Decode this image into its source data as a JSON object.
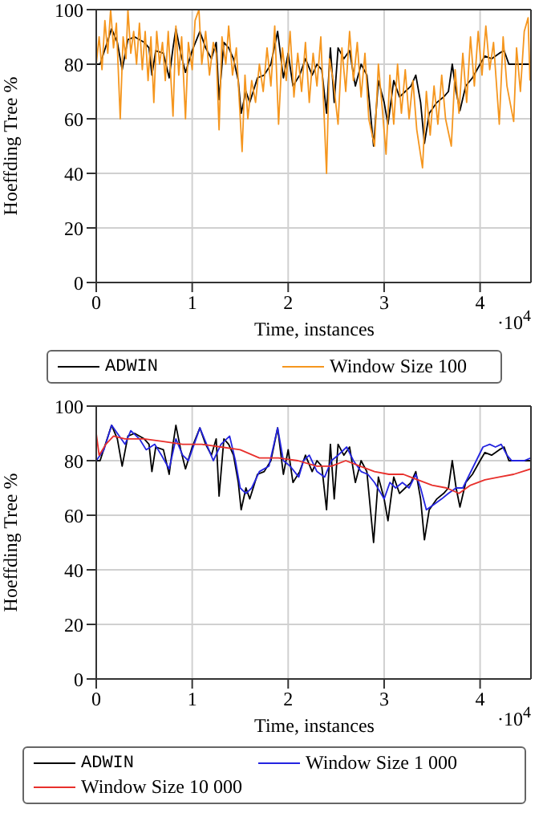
{
  "chart_data": [
    {
      "type": "line",
      "xlabel": "Time, instances",
      "ylabel": "Hoeffding Tree %",
      "annotations": [
        "·10$^{4}$"
      ],
      "xlim": [
        0,
        4.53
      ],
      "xticks": [
        0,
        1,
        2,
        3,
        4
      ],
      "ylim": [
        0,
        100
      ],
      "yticks": [
        0,
        20,
        40,
        60,
        80,
        100
      ],
      "grid": true,
      "legend": "bottom",
      "series": [
        {
          "name": "ADWIN",
          "color": "#000000",
          "x": [
            0,
            0.04,
            0.16,
            0.22,
            0.27,
            0.33,
            0.4,
            0.5,
            0.55,
            0.58,
            0.62,
            0.7,
            0.76,
            0.8,
            0.83,
            0.88,
            0.93,
            1.0,
            1.08,
            1.14,
            1.2,
            1.25,
            1.28,
            1.33,
            1.38,
            1.43,
            1.48,
            1.51,
            1.56,
            1.6,
            1.68,
            1.75,
            1.82,
            1.89,
            1.95,
            2.0,
            2.05,
            2.12,
            2.18,
            2.25,
            2.3,
            2.35,
            2.4,
            2.44,
            2.48,
            2.52,
            2.58,
            2.64,
            2.7,
            2.76,
            2.82,
            2.89,
            2.94,
            3.0,
            3.04,
            3.1,
            3.16,
            3.22,
            3.28,
            3.33,
            3.38,
            3.42,
            3.47,
            3.55,
            3.62,
            3.67,
            3.71,
            3.75,
            3.79,
            3.85,
            3.92,
            4.0,
            4.05,
            4.12,
            4.2,
            4.25,
            4.3,
            4.35,
            4.42,
            4.53
          ],
          "values": [
            80,
            80,
            93,
            88,
            78,
            89,
            90,
            88,
            86,
            76,
            85,
            84,
            75,
            86,
            93,
            84,
            77,
            85,
            92,
            86,
            82,
            88,
            67,
            88,
            86,
            82,
            74,
            62,
            70,
            66,
            75,
            76,
            80,
            92,
            75,
            84,
            72,
            76,
            82,
            76,
            80,
            78,
            62,
            86,
            66,
            86,
            82,
            85,
            72,
            80,
            76,
            50,
            74,
            66,
            58,
            74,
            68,
            70,
            72,
            76,
            66,
            51,
            62,
            66,
            68,
            70,
            80,
            70,
            63,
            72,
            75,
            80,
            83,
            82,
            84,
            85,
            80,
            80,
            80,
            80
          ]
        },
        {
          "name": "Window Size 100",
          "color": "#f5961e",
          "x": [
            0,
            0.03,
            0.06,
            0.09,
            0.12,
            0.15,
            0.18,
            0.21,
            0.25,
            0.28,
            0.31,
            0.33,
            0.36,
            0.39,
            0.42,
            0.45,
            0.48,
            0.51,
            0.54,
            0.57,
            0.6,
            0.63,
            0.66,
            0.69,
            0.72,
            0.75,
            0.8,
            0.83,
            0.86,
            0.89,
            0.93,
            0.96,
            1.0,
            1.03,
            1.07,
            1.1,
            1.14,
            1.18,
            1.22,
            1.25,
            1.28,
            1.31,
            1.35,
            1.38,
            1.42,
            1.46,
            1.52,
            1.55,
            1.58,
            1.62,
            1.66,
            1.7,
            1.74,
            1.78,
            1.82,
            1.86,
            1.9,
            1.94,
            1.98,
            2.02,
            2.06,
            2.1,
            2.14,
            2.18,
            2.22,
            2.26,
            2.3,
            2.34,
            2.4,
            2.43,
            2.47,
            2.52,
            2.56,
            2.6,
            2.64,
            2.68,
            2.72,
            2.76,
            2.8,
            2.84,
            2.9,
            2.94,
            2.98,
            3.02,
            3.06,
            3.1,
            3.14,
            3.18,
            3.22,
            3.26,
            3.3,
            3.34,
            3.4,
            3.44,
            3.48,
            3.52,
            3.56,
            3.6,
            3.64,
            3.7,
            3.74,
            3.78,
            3.82,
            3.86,
            3.9,
            3.94,
            3.98,
            4.02,
            4.06,
            4.1,
            4.14,
            4.2,
            4.24,
            4.28,
            4.35,
            4.38,
            4.42,
            4.46,
            4.5,
            4.52
          ],
          "values": [
            80,
            90,
            78,
            96,
            84,
            100,
            86,
            95,
            60,
            90,
            82,
            100,
            84,
            92,
            80,
            95,
            78,
            92,
            74,
            90,
            66,
            92,
            80,
            88,
            74,
            92,
            61,
            94,
            76,
            90,
            60,
            88,
            78,
            96,
            100,
            80,
            92,
            76,
            88,
            84,
            56,
            90,
            80,
            94,
            76,
            86,
            48,
            76,
            60,
            74,
            66,
            80,
            70,
            86,
            72,
            94,
            58,
            86,
            74,
            92,
            68,
            84,
            70,
            88,
            66,
            84,
            72,
            90,
            40,
            82,
            74,
            58,
            86,
            70,
            92,
            74,
            88,
            68,
            84,
            60,
            50,
            80,
            64,
            47,
            76,
            58,
            80,
            62,
            78,
            60,
            74,
            56,
            42,
            70,
            54,
            72,
            58,
            76,
            60,
            50,
            78,
            62,
            84,
            66,
            90,
            72,
            92,
            76,
            94,
            78,
            88,
            58,
            90,
            72,
            59,
            86,
            70,
            92,
            97,
            74
          ]
        }
      ]
    },
    {
      "type": "line",
      "xlabel": "Time, instances",
      "ylabel": "Hoeffding Tree %",
      "annotations": [
        "·10$^{4}$"
      ],
      "xlim": [
        0,
        4.53
      ],
      "xticks": [
        0,
        1,
        2,
        3,
        4
      ],
      "ylim": [
        0,
        100
      ],
      "yticks": [
        0,
        20,
        40,
        60,
        80,
        100
      ],
      "grid": true,
      "legend": "bottom",
      "series": [
        {
          "name": "ADWIN",
          "color": "#000000",
          "x": [
            0,
            0.04,
            0.16,
            0.22,
            0.27,
            0.33,
            0.4,
            0.5,
            0.55,
            0.58,
            0.62,
            0.7,
            0.76,
            0.8,
            0.83,
            0.88,
            0.93,
            1.0,
            1.08,
            1.14,
            1.2,
            1.25,
            1.28,
            1.33,
            1.38,
            1.43,
            1.48,
            1.51,
            1.56,
            1.6,
            1.68,
            1.75,
            1.82,
            1.89,
            1.95,
            2.0,
            2.05,
            2.12,
            2.18,
            2.25,
            2.3,
            2.35,
            2.4,
            2.44,
            2.48,
            2.52,
            2.58,
            2.64,
            2.7,
            2.76,
            2.82,
            2.89,
            2.94,
            3.0,
            3.04,
            3.1,
            3.16,
            3.22,
            3.28,
            3.33,
            3.38,
            3.42,
            3.47,
            3.55,
            3.62,
            3.67,
            3.71,
            3.75,
            3.79,
            3.85,
            3.92,
            4.0,
            4.05,
            4.12,
            4.2,
            4.25,
            4.3,
            4.35,
            4.42,
            4.53
          ],
          "values": [
            80,
            80,
            93,
            88,
            78,
            89,
            90,
            88,
            86,
            76,
            85,
            84,
            75,
            86,
            93,
            84,
            77,
            85,
            92,
            86,
            82,
            88,
            67,
            88,
            86,
            82,
            72,
            62,
            70,
            66,
            75,
            76,
            80,
            92,
            75,
            84,
            72,
            76,
            82,
            76,
            80,
            78,
            62,
            86,
            66,
            86,
            82,
            85,
            72,
            80,
            76,
            50,
            74,
            66,
            58,
            74,
            68,
            70,
            72,
            76,
            66,
            51,
            62,
            66,
            68,
            70,
            80,
            70,
            63,
            72,
            75,
            80,
            83,
            82,
            84,
            85,
            80,
            80,
            80,
            80
          ]
        },
        {
          "name": "Window Size 1 000",
          "color": "#2424e0",
          "x": [
            0,
            0.08,
            0.16,
            0.22,
            0.3,
            0.36,
            0.45,
            0.52,
            0.61,
            0.68,
            0.76,
            0.83,
            0.9,
            0.96,
            1.02,
            1.08,
            1.15,
            1.22,
            1.3,
            1.39,
            1.45,
            1.5,
            1.56,
            1.62,
            1.7,
            1.8,
            1.89,
            1.95,
            2.02,
            2.11,
            2.16,
            2.22,
            2.3,
            2.38,
            2.45,
            2.52,
            2.61,
            2.68,
            2.76,
            2.83,
            2.9,
            3.0,
            3.06,
            3.12,
            3.19,
            3.26,
            3.33,
            3.38,
            3.44,
            3.52,
            3.6,
            3.67,
            3.75,
            3.82,
            3.89,
            3.96,
            4.03,
            4.1,
            4.16,
            4.22,
            4.28,
            4.33,
            4.4,
            4.46,
            4.53
          ],
          "values": [
            80,
            84,
            93,
            90,
            86,
            91,
            88,
            84,
            86,
            82,
            77,
            88,
            82,
            80,
            86,
            92,
            86,
            80,
            86,
            89,
            80,
            70,
            68,
            70,
            76,
            78,
            92,
            80,
            78,
            74,
            80,
            82,
            76,
            74,
            80,
            82,
            85,
            80,
            76,
            75,
            72,
            66,
            72,
            70,
            72,
            70,
            75,
            70,
            62,
            64,
            66,
            68,
            70,
            70,
            75,
            80,
            85,
            86,
            85,
            86,
            82,
            80,
            80,
            80,
            81
          ]
        },
        {
          "name": "Window Size 10 000",
          "color": "#e8302c",
          "x": [
            0,
            0.03,
            0.1,
            0.18,
            0.3,
            0.5,
            0.7,
            0.9,
            1.1,
            1.3,
            1.5,
            1.7,
            1.9,
            2.1,
            2.3,
            2.45,
            2.6,
            2.75,
            2.9,
            3.05,
            3.2,
            3.35,
            3.5,
            3.65,
            3.78,
            3.9,
            4.05,
            4.2,
            4.35,
            4.53
          ],
          "values": [
            90,
            82,
            86,
            89,
            88,
            88,
            87,
            86,
            86,
            85,
            84,
            81,
            81,
            80,
            78,
            78,
            80,
            78,
            76,
            75,
            75,
            73,
            71,
            70,
            68,
            71,
            73,
            74,
            75,
            77
          ]
        }
      ]
    }
  ]
}
